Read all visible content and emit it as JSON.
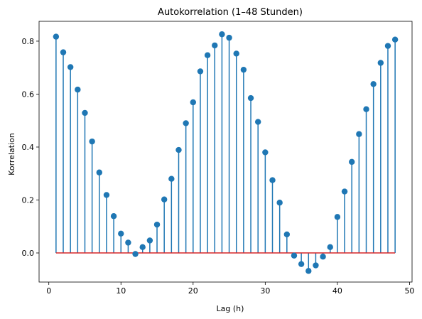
{
  "chart_data": {
    "type": "stem",
    "title": "Autokorrelation (1–48 Stunden)",
    "xlabel": "Lag (h)",
    "ylabel": "Korrelation",
    "xlim": [
      -1.35,
      50.35
    ],
    "ylim": [
      -0.11,
      0.875
    ],
    "xticks": [
      0,
      10,
      20,
      30,
      40,
      50
    ],
    "yticks": [
      0.0,
      0.2,
      0.4,
      0.6,
      0.8
    ],
    "xtick_labels": [
      "0",
      "10",
      "20",
      "30",
      "40",
      "50"
    ],
    "ytick_labels": [
      "0.0",
      "0.2",
      "0.4",
      "0.6",
      "0.8"
    ],
    "grid": false,
    "x": [
      1,
      2,
      3,
      4,
      5,
      6,
      7,
      8,
      9,
      10,
      11,
      12,
      13,
      14,
      15,
      16,
      17,
      18,
      19,
      20,
      21,
      22,
      23,
      24,
      25,
      26,
      27,
      28,
      29,
      30,
      31,
      32,
      33,
      34,
      35,
      36,
      37,
      38,
      39,
      40,
      41,
      42,
      43,
      44,
      45,
      46,
      47,
      48
    ],
    "values": [
      0.817,
      0.758,
      0.702,
      0.617,
      0.529,
      0.421,
      0.304,
      0.219,
      0.139,
      0.073,
      0.039,
      -0.004,
      0.022,
      0.047,
      0.107,
      0.202,
      0.28,
      0.389,
      0.49,
      0.569,
      0.686,
      0.747,
      0.784,
      0.826,
      0.813,
      0.753,
      0.692,
      0.585,
      0.495,
      0.38,
      0.275,
      0.19,
      0.07,
      -0.01,
      -0.042,
      -0.068,
      -0.047,
      -0.014,
      0.022,
      0.136,
      0.232,
      0.344,
      0.449,
      0.543,
      0.638,
      0.718,
      0.782,
      0.806
    ],
    "baseline": 0,
    "colors": {
      "stem": "#1f77b4",
      "marker": "#1f77b4",
      "baseline": "#d62728"
    }
  }
}
